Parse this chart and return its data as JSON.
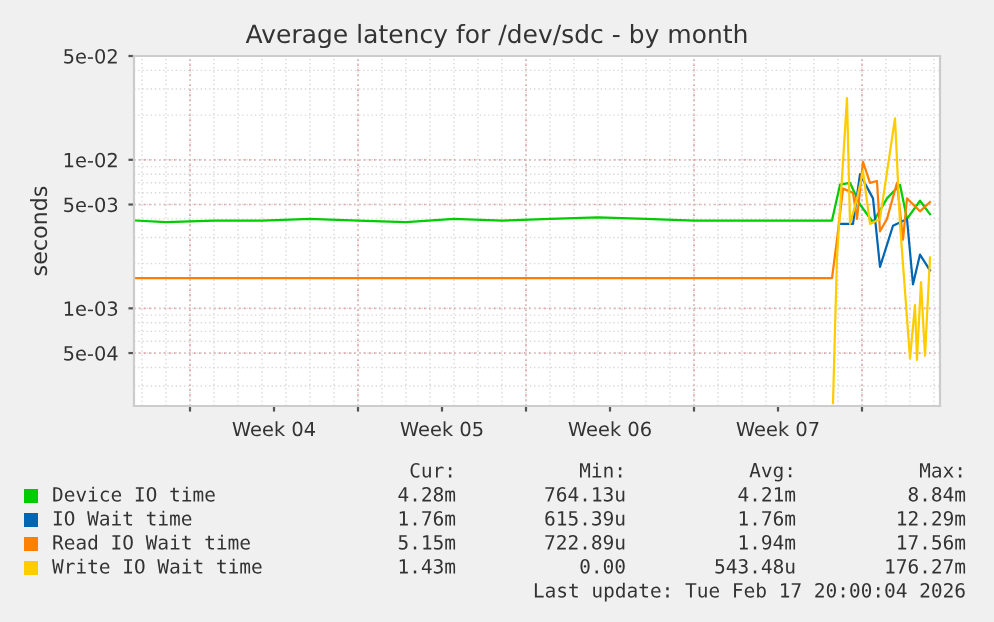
{
  "chart_data": {
    "type": "line",
    "title": "Average latency for /dev/sdc - by month",
    "ylabel": "seconds",
    "log": "y",
    "grid": true,
    "legend": "bottom",
    "xlim": [
      "2026-01-15T16:00",
      "2026-02-18T06:00"
    ],
    "xticks": [
      {
        "value": "2026-01-18",
        "label": null
      },
      {
        "value": "2026-01-21T12:00",
        "label": "Week 04"
      },
      {
        "value": "2026-01-25",
        "label": null
      },
      {
        "value": "2026-01-28T12:00",
        "label": "Week 05"
      },
      {
        "value": "2026-02-01",
        "label": null
      },
      {
        "value": "2026-02-04T12:00",
        "label": "Week 06"
      },
      {
        "value": "2026-02-08",
        "label": null
      },
      {
        "value": "2026-02-11T12:00",
        "label": "Week 07"
      },
      {
        "value": "2026-02-15",
        "label": null
      }
    ],
    "ylim": [
      0.00022,
      0.05
    ],
    "yticks": [
      {
        "value": 0.0005,
        "label": "5e-04"
      },
      {
        "value": 0.001,
        "label": "1e-03"
      },
      {
        "value": 0.005,
        "label": "5e-03"
      },
      {
        "value": 0.01,
        "label": "1e-02"
      },
      {
        "value": 0.05,
        "label": "5e-02"
      }
    ],
    "series": [
      {
        "name": "Device IO time",
        "color": "#00cc00",
        "x": [
          "2026-01-15T18:00",
          "2026-01-17",
          "2026-01-19",
          "2026-01-21",
          "2026-01-23",
          "2026-01-25",
          "2026-01-27",
          "2026-01-29",
          "2026-01-31",
          "2026-02-02",
          "2026-02-04",
          "2026-02-06",
          "2026-02-08",
          "2026-02-10",
          "2026-02-12",
          "2026-02-13T18:00",
          "2026-02-14T02:00",
          "2026-02-14T12:00",
          "2026-02-14T22:00",
          "2026-02-15T11:00",
          "2026-02-16T01:00",
          "2026-02-16T14:00",
          "2026-02-16T21:00",
          "2026-02-17T10:00",
          "2026-02-17T20:00"
        ],
        "values": [
          0.0039,
          0.0038,
          0.0039,
          0.0039,
          0.004,
          0.0039,
          0.0038,
          0.004,
          0.0039,
          0.004,
          0.0041,
          0.004,
          0.0039,
          0.0039,
          0.0039,
          0.0039,
          0.0068,
          0.007,
          0.005,
          0.0038,
          0.0055,
          0.0068,
          0.004,
          0.0053,
          0.0043
        ]
      },
      {
        "name": "IO Wait time",
        "color": "#0066b3",
        "x": [
          "2026-02-14T02:00",
          "2026-02-14T15:00",
          "2026-02-14T22:00",
          "2026-02-15T11:00",
          "2026-02-15T18:00",
          "2026-02-16T07:00",
          "2026-02-16T21:00",
          "2026-02-17T03:00",
          "2026-02-17T10:00",
          "2026-02-17T20:00"
        ],
        "values": [
          0.0037,
          0.0037,
          0.008,
          0.0055,
          0.0019,
          0.0036,
          0.004,
          0.00145,
          0.0023,
          0.0018
        ]
      },
      {
        "name": "Read IO Wait time",
        "color": "#ff8000",
        "x": [
          "2026-01-15T18:00",
          "2026-01-17",
          "2026-01-19",
          "2026-01-21",
          "2026-01-23",
          "2026-01-25",
          "2026-01-27",
          "2026-01-29",
          "2026-01-31",
          "2026-02-02",
          "2026-02-04",
          "2026-02-06",
          "2026-02-08",
          "2026-02-10",
          "2026-02-12",
          "2026-02-13T18:00",
          "2026-02-13T23:00",
          "2026-02-14T05:00",
          "2026-02-14T15:00",
          "2026-02-14T19:00",
          "2026-02-15T01:00",
          "2026-02-15T08:00",
          "2026-02-15T15:00",
          "2026-02-15T18:00",
          "2026-02-16T01:00",
          "2026-02-16T11:00",
          "2026-02-16T17:00",
          "2026-02-16T21:00",
          "2026-02-17T10:00",
          "2026-02-17T20:00"
        ],
        "values": [
          0.0016,
          0.0016,
          0.0016,
          0.0016,
          0.0016,
          0.0016,
          0.0016,
          0.0016,
          0.0016,
          0.0016,
          0.0016,
          0.0016,
          0.0016,
          0.0016,
          0.0016,
          0.0016,
          0.0029,
          0.0064,
          0.006,
          0.004,
          0.0097,
          0.007,
          0.0072,
          0.0033,
          0.004,
          0.007,
          0.0029,
          0.0055,
          0.0045,
          0.0052
        ]
      },
      {
        "name": "Write IO Wait time",
        "color": "#ffcc00",
        "x": [
          "2026-02-13T19:00",
          "2026-02-13T23:00",
          "2026-02-14T09:00",
          "2026-02-14T12:00",
          "2026-02-14T19:00",
          "2026-02-15T01:00",
          "2026-02-15T08:00",
          "2026-02-15T18:00",
          "2026-02-16T09:00",
          "2026-02-16T14:00",
          "2026-02-17T00:00",
          "2026-02-17T05:00",
          "2026-02-17T07:00",
          "2026-02-17T11:00",
          "2026-02-17T15:00",
          "2026-02-17T20:00"
        ],
        "values": [
          0.00023,
          0.0022,
          0.026,
          0.0037,
          0.0055,
          0.0084,
          0.0037,
          0.004,
          0.019,
          0.0037,
          0.00046,
          0.00105,
          0.00045,
          0.0015,
          0.00048,
          0.0022
        ]
      }
    ],
    "annotations": [
      "Cur:",
      "Min:",
      "Avg:",
      "Max:",
      "4.28m",
      "764.13u",
      "4.21m",
      "8.84m",
      "1.76m",
      "615.39u",
      "1.76m",
      "12.29m",
      "5.15m",
      "722.89u",
      "1.94m",
      "17.56m",
      "1.43m",
      "0.00",
      "543.48u",
      "176.27m",
      "Last update: Tue Feb 17 20:00:04 2026"
    ]
  }
}
